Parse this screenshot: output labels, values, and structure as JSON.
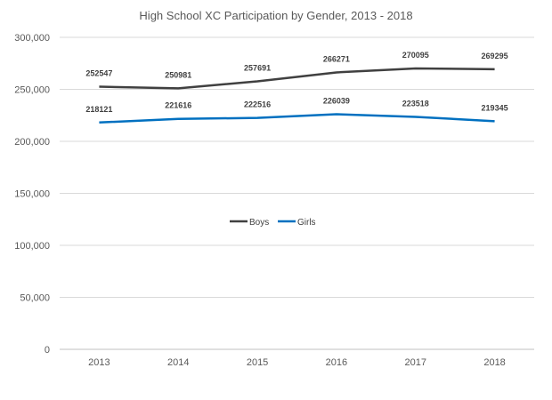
{
  "chart_data": {
    "type": "line",
    "title": "High School XC Participation by Gender, 2013 - 2018",
    "xlabel": "",
    "ylabel": "",
    "categories": [
      "2013",
      "2014",
      "2015",
      "2016",
      "2017",
      "2018"
    ],
    "ylim": [
      0,
      300000
    ],
    "yticks": [
      0,
      50000,
      100000,
      150000,
      200000,
      250000,
      300000
    ],
    "ytick_labels": [
      "0",
      "50,000",
      "100,000",
      "150,000",
      "200,000",
      "250,000",
      "300,000"
    ],
    "grid": true,
    "legend_position": "center",
    "series": [
      {
        "name": "Boys",
        "color": "#404040",
        "values": [
          252547,
          250981,
          257691,
          266271,
          270095,
          269295
        ]
      },
      {
        "name": "Girls",
        "color": "#0070c0",
        "values": [
          218121,
          221616,
          222516,
          226039,
          223518,
          219345
        ]
      }
    ]
  }
}
